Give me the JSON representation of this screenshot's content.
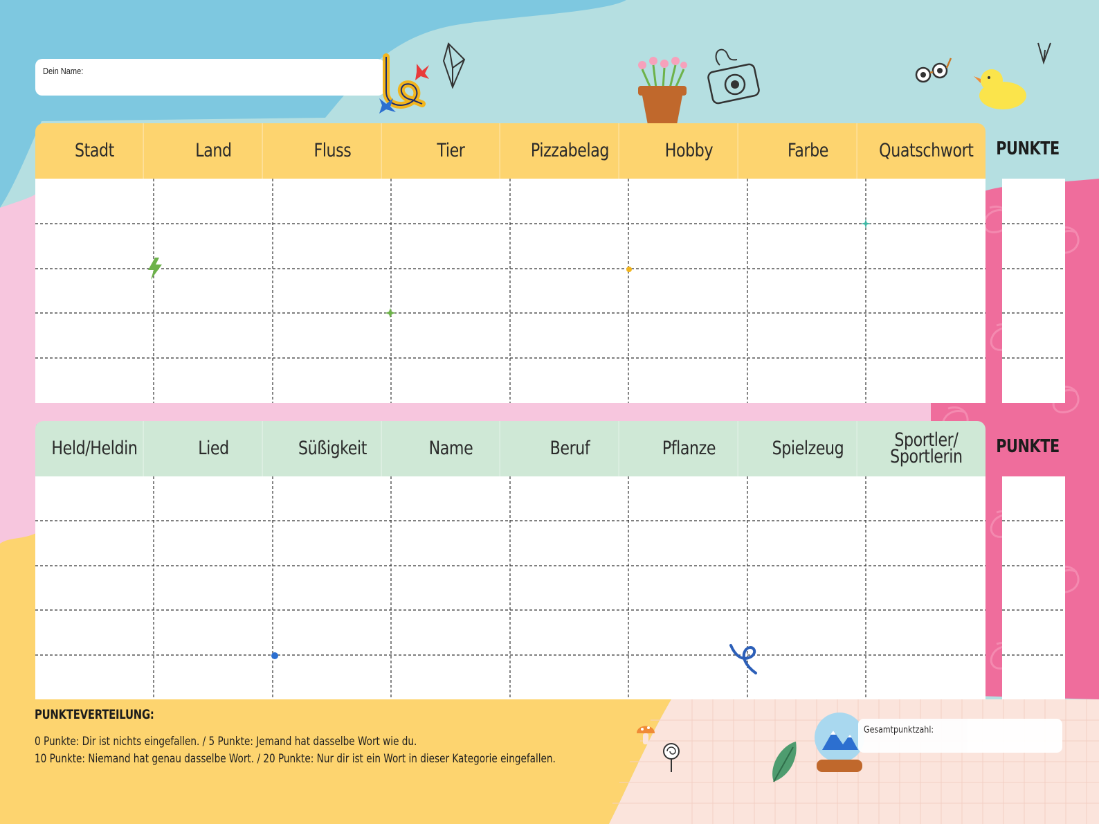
{
  "name_field": {
    "label": "Dein Name:",
    "value": ""
  },
  "table_top": {
    "headers": [
      "Stadt",
      "Land",
      "Fluss",
      "Tier",
      "Pizzabelag",
      "Hobby",
      "Farbe",
      "Quatschwort"
    ],
    "points_label": "PUNKTE",
    "rows": 5
  },
  "table_bottom": {
    "headers": [
      "Held/Heldin",
      "Lied",
      "Süßigkeit",
      "Name",
      "Beruf",
      "Pflanze",
      "Spielzeug",
      "Sportler/\nSportlerin"
    ],
    "points_label": "PUNKTE",
    "rows": 5
  },
  "footer": {
    "title": "PUNKTEVERTEILUNG:",
    "line1": "0 Punkte: Dir ist nichts eingefallen. / 5 Punkte: Jemand hat dasselbe Wort wie du.",
    "line2": "10 Punkte: Niemand hat genau dasselbe Wort. / 20 Punkte: Nur dir ist ein Wort in dieser Kategorie eingefallen.",
    "total_label": "Gesamtpunktzahl:"
  },
  "colors": {
    "top_header": "#fdd46f",
    "bottom_header": "#cfe8d6",
    "pink_band": "#f7c6de",
    "magenta": "#ef6d9c",
    "sky": "#7ec8e0",
    "mint": "#b5dfe1",
    "yellow": "#fdd46f",
    "peach": "#fbe4dc"
  }
}
